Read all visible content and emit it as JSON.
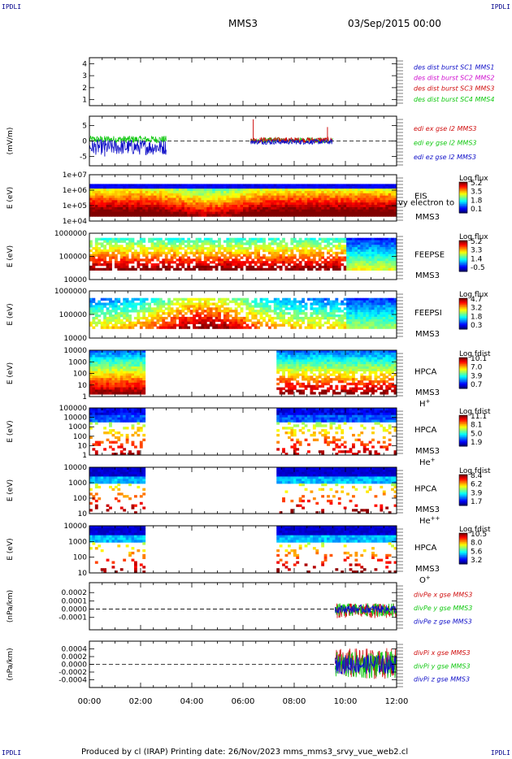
{
  "header": {
    "corner_label": "IPDLI",
    "spacecraft": "MMS3",
    "date": "03/Sep/2015 00:00"
  },
  "footer": {
    "text": "Produced by cl (IRAP)   Printing date: 26/Nov/2023   mms_mms3_srvy_vue_web2.cl"
  },
  "time_axis": {
    "range_hours": [
      0,
      12
    ],
    "ticks": [
      "00:00",
      "02:00",
      "04:00",
      "06:00",
      "08:00",
      "10:00",
      "12:00"
    ]
  },
  "colors": {
    "blue": "#1010c8",
    "green": "#10c810",
    "red": "#d01010",
    "magenta": "#d010d0"
  },
  "chart_data": [
    {
      "type": "line",
      "id": "burst",
      "ylabel": "",
      "ylim": [
        0.5,
        4.5
      ],
      "yticks": [
        "1",
        "2",
        "3",
        "4"
      ],
      "legend": [
        {
          "text": "des dist burst SC1 MMS1",
          "color": "#1010c8"
        },
        {
          "text": "des dist burst SC2 MMS2",
          "color": "#d010d0"
        },
        {
          "text": "des dist burst SC3 MMS3",
          "color": "#d01010"
        },
        {
          "text": "des dist burst SC4 MMS4",
          "color": "#10c810"
        }
      ],
      "series": []
    },
    {
      "type": "line",
      "id": "edi",
      "ylabel": "(mV/m)",
      "ylim": [
        -8,
        8
      ],
      "yticks": [
        "5",
        "0",
        "-5"
      ],
      "zero_line": true,
      "legend": [
        {
          "text": "edi ex gse l2 MMS3",
          "color": "#d01010"
        },
        {
          "text": "edi ey gse l2 MMS3",
          "color": "#10c810"
        },
        {
          "text": "edi ez gse l2 MMS3",
          "color": "#1010c8"
        }
      ],
      "series": [
        {
          "color": "#10c810",
          "segments": [
            [
              0.0,
              3.0,
              0.5,
              1.2
            ],
            [
              6.3,
              9.5,
              0.2,
              0.8
            ]
          ]
        },
        {
          "color": "#d01010",
          "segments": [
            [
              6.3,
              9.5,
              0.3,
              0.9
            ]
          ]
        },
        {
          "color": "#1010c8",
          "segments": [
            [
              0.0,
              3.0,
              -2.0,
              2.5
            ],
            [
              6.3,
              9.5,
              -0.3,
              0.8
            ]
          ]
        }
      ],
      "spikes": [
        [
          6.4,
          7.0,
          "#d01010"
        ],
        [
          9.3,
          4.5,
          "#d01010"
        ],
        [
          0.6,
          -5.0,
          "#1010c8"
        ]
      ]
    },
    {
      "type": "heatmap",
      "id": "eis",
      "ylabel": "E (eV)",
      "yticks": [
        "1e+07",
        "1e+06",
        "1e+05",
        "1e+04"
      ],
      "instrument": "EIS",
      "spacecraft": "MMS3",
      "extra_label": "vy electron to",
      "colorbar": {
        "title": "Log flux",
        "ticks": [
          "5.2",
          "3.5",
          "1.8",
          "0.1"
        ]
      },
      "data_windows": [
        [
          0,
          12
        ]
      ],
      "band": [
        0.35,
        0.82
      ],
      "profile": "eis"
    },
    {
      "type": "heatmap",
      "id": "feeps_e",
      "ylabel": "E (eV)",
      "yticks": [
        "1000000",
        "100000",
        "10000"
      ],
      "instrument": "FEEPSE",
      "spacecraft": "MMS3",
      "colorbar": {
        "title": "Log flux",
        "ticks": [
          "5.2",
          "3.3",
          "1.4",
          "-0.5"
        ]
      },
      "data_windows": [
        [
          0,
          12
        ]
      ],
      "band": [
        0.1,
        0.7
      ],
      "profile": "feeps_e"
    },
    {
      "type": "heatmap",
      "id": "feeps_i",
      "ylabel": "E (eV)",
      "yticks": [
        "1000000",
        "100000",
        "10000"
      ],
      "instrument": "FEEPSI",
      "spacecraft": "MMS3",
      "colorbar": {
        "title": "Log flux",
        "ticks": [
          "4.7",
          "3.2",
          "1.8",
          "0.3"
        ]
      },
      "data_windows": [
        [
          0,
          12
        ]
      ],
      "band": [
        0.1,
        0.6
      ],
      "profile": "feeps_i"
    },
    {
      "type": "heatmap",
      "id": "hpca_h",
      "ylabel": "E (eV)",
      "yticks": [
        "10000",
        "1000",
        "100",
        "10",
        "1"
      ],
      "instrument": "HPCA",
      "spacecraft": "MMS3",
      "species": "H",
      "species_sup": "+",
      "colorbar": {
        "title": "Log fdist",
        "ticks": [
          "10.1",
          "7.0",
          "3.9",
          "0.7"
        ]
      },
      "data_windows": [
        [
          0,
          2.2
        ],
        [
          7.3,
          12
        ]
      ],
      "band": [
        0.0,
        1.0
      ],
      "profile": "hpca_h"
    },
    {
      "type": "heatmap",
      "id": "hpca_he",
      "ylabel": "E (eV)",
      "yticks": [
        "100000",
        "10000",
        "1000",
        "100",
        "10",
        "1"
      ],
      "instrument": "HPCA",
      "spacecraft": "MMS3",
      "species": "He",
      "species_sup": "+",
      "colorbar": {
        "title": "Log fdist",
        "ticks": [
          "11.1",
          "8.1",
          "5.0",
          "1.9"
        ]
      },
      "data_windows": [
        [
          0,
          2.2
        ],
        [
          7.3,
          12
        ]
      ],
      "band": [
        0.0,
        0.7
      ],
      "profile": "hpca_sparse"
    },
    {
      "type": "heatmap",
      "id": "hpca_hepp",
      "ylabel": "E (eV)",
      "yticks": [
        "10000",
        "1000",
        "100",
        "10"
      ],
      "instrument": "HPCA",
      "spacecraft": "MMS3",
      "species": "He",
      "species_sup": "++",
      "colorbar": {
        "title": "Log fdist",
        "ticks": [
          "8.4",
          "6.2",
          "3.9",
          "1.7"
        ]
      },
      "data_windows": [
        [
          0,
          2.2
        ],
        [
          7.3,
          12
        ]
      ],
      "band": [
        0.0,
        0.45
      ],
      "profile": "hpca_top"
    },
    {
      "type": "heatmap",
      "id": "hpca_o",
      "ylabel": "E (eV)",
      "yticks": [
        "10000",
        "1000",
        "100",
        "10"
      ],
      "instrument": "HPCA",
      "spacecraft": "MMS3",
      "species": "O",
      "species_sup": "+",
      "colorbar": {
        "title": "Log fdist",
        "ticks": [
          "10.5",
          "8.0",
          "5.6",
          "3.2"
        ]
      },
      "data_windows": [
        [
          0,
          2.2
        ],
        [
          7.3,
          12
        ]
      ],
      "band": [
        0.0,
        0.55
      ],
      "profile": "hpca_top"
    },
    {
      "type": "line",
      "id": "divpe",
      "ylabel": "(nPa/km)",
      "ylim": [
        -0.00025,
        0.00032
      ],
      "yticks": [
        "0.0002",
        "0.0001",
        "0.0000",
        "-0.0001"
      ],
      "zero_line": true,
      "legend": [
        {
          "text": "divPe x gse MMS3",
          "color": "#d01010"
        },
        {
          "text": "divPe y gse MMS3",
          "color": "#10c810"
        },
        {
          "text": "divPe z gse MMS3",
          "color": "#1010c8"
        }
      ],
      "series": [
        {
          "color": "#d01010",
          "segments": [
            [
              9.6,
              12,
              -2e-05,
              9e-05
            ]
          ]
        },
        {
          "color": "#10c810",
          "segments": [
            [
              9.6,
              12,
              -1e-05,
              8e-05
            ]
          ]
        },
        {
          "color": "#1010c8",
          "segments": [
            [
              9.6,
              12,
              0.0,
              5e-05
            ]
          ]
        }
      ],
      "spikes": []
    },
    {
      "type": "line",
      "id": "divpi",
      "ylabel": "(nPa/km)",
      "ylim": [
        -0.0006,
        0.0006
      ],
      "yticks": [
        "0.0004",
        "0.0002",
        "0.0000",
        "-0.0002",
        "-0.0004"
      ],
      "zero_line": true,
      "legend": [
        {
          "text": "divPi x gse MMS3",
          "color": "#d01010"
        },
        {
          "text": "divPi y gse MMS3",
          "color": "#10c810"
        },
        {
          "text": "divPi z gse MMS3",
          "color": "#1010c8"
        }
      ],
      "series": [
        {
          "color": "#d01010",
          "segments": [
            [
              9.6,
              12,
              2e-05,
              0.0004
            ]
          ]
        },
        {
          "color": "#10c810",
          "segments": [
            [
              9.6,
              12,
              -2e-05,
              0.00035
            ]
          ]
        },
        {
          "color": "#1010c8",
          "segments": [
            [
              9.6,
              12,
              0.0,
              0.00025
            ]
          ]
        }
      ],
      "spikes": []
    }
  ]
}
